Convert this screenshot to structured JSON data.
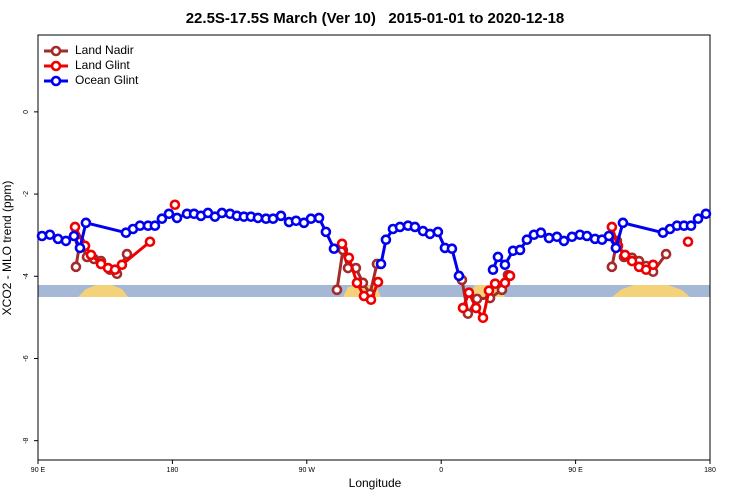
{
  "chart_data": {
    "type": "line",
    "title": "22.5S-17.5S March (Ver 10)   2015-01-01 to 2020-12-18",
    "xlabel": "Longitude",
    "ylabel": "XCO2 - MLO trend (ppm)",
    "xlim": [
      90,
      540
    ],
    "ylim": [
      -8.47,
      1.87
    ],
    "xticks": [
      {
        "value": 90,
        "label": "90 E"
      },
      180,
      {
        "value": 270,
        "label": "90 W"
      },
      0,
      {
        "value": 450,
        "label": "90 E"
      },
      {
        "value": 540,
        "label": "180"
      }
    ],
    "yticks": [
      0,
      -2,
      -4,
      -6,
      -8
    ],
    "legend": "top-left",
    "series": [
      {
        "name": "Land Nadir",
        "color": "#a52a2a",
        "x": [
          115.4,
          118.1,
          122.8,
          127.5,
          132.2,
          138.2,
          142.9,
          149.6,
          null,
          290.2,
          294.2,
          297.6,
          302.9,
          307.6,
          312.3,
          317.0,
          null,
          373.9,
          377.9,
          384.0,
          392.7,
          400.7,
          404.7,
          null,
          474.3,
          477.7,
          482.4,
          487.8,
          492.5,
          497.2,
          501.9,
          510.6
        ],
        "values": [
          -3.77,
          -3.16,
          -3.53,
          -3.58,
          -3.63,
          -3.84,
          -3.94,
          -3.46,
          null,
          -4.33,
          -3.36,
          -3.8,
          -3.8,
          -4.16,
          -4.43,
          -3.7,
          null,
          -4.09,
          -4.91,
          -4.55,
          -4.53,
          -4.33,
          -3.97,
          null,
          -3.77,
          -3.14,
          -3.53,
          -3.55,
          -3.63,
          -3.75,
          -3.89,
          -3.46
        ]
      },
      {
        "name": "Land Glint",
        "color": "#ee0000",
        "x": [
          114.8,
          121.5,
          125.5,
          132.2,
          136.9,
          141.6,
          146.2,
          165.0,
          null,
          181.7,
          null,
          293.6,
          298.2,
          303.6,
          308.3,
          313.0,
          317.7,
          null,
          374.6,
          378.6,
          383.3,
          388.0,
          392.0,
          396.1,
          402.7,
          406.1,
          null,
          474.3,
          478.4,
          483.1,
          487.8,
          492.5,
          497.2,
          501.9,
          null,
          525.3
        ],
        "values": [
          -2.8,
          -3.26,
          -3.48,
          -3.7,
          -3.8,
          -3.84,
          -3.72,
          -3.16,
          null,
          -2.26,
          null,
          -3.21,
          -3.55,
          -4.16,
          -4.48,
          -4.57,
          -4.14,
          null,
          -4.77,
          -4.4,
          -4.77,
          -5.01,
          -4.35,
          -4.18,
          -4.16,
          -3.99,
          null,
          -2.8,
          -3.26,
          -3.48,
          -3.63,
          -3.77,
          -3.84,
          -3.72,
          null,
          -3.16
        ]
      },
      {
        "name": "Ocean Glint",
        "color": "#0000ee",
        "x": [
          92.7,
          98.0,
          103.4,
          108.7,
          114.1,
          118.1,
          122.1,
          148.9,
          153.6,
          158.3,
          163.7,
          168.3,
          173.0,
          177.7,
          183.1,
          189.8,
          194.5,
          199.1,
          203.8,
          208.5,
          213.2,
          218.6,
          223.2,
          227.9,
          232.6,
          237.3,
          242.7,
          247.4,
          252.7,
          258.1,
          262.8,
          268.1,
          272.8,
          278.2,
          282.8,
          288.2,
          null,
          319.7,
          323.0,
          327.7,
          332.4,
          337.8,
          342.4,
          347.8,
          352.5,
          357.8,
          362.5,
          367.2,
          371.9,
          null,
          394.7,
          398.0,
          402.7,
          408.1,
          412.8,
          417.4,
          422.1,
          426.8,
          432.2,
          437.5,
          442.2,
          447.6,
          452.9,
          457.6,
          463.0,
          467.7,
          472.3,
          477.0,
          481.7,
          508.5,
          513.2,
          517.9,
          522.6,
          527.3,
          532.0,
          537.3
        ],
        "values": [
          -3.02,
          -2.99,
          -3.09,
          -3.14,
          -3.02,
          -3.31,
          -2.7,
          -2.94,
          -2.85,
          -2.77,
          -2.77,
          -2.77,
          -2.6,
          -2.48,
          -2.58,
          -2.48,
          -2.48,
          -2.53,
          -2.46,
          -2.55,
          -2.46,
          -2.48,
          -2.53,
          -2.55,
          -2.55,
          -2.58,
          -2.6,
          -2.6,
          -2.53,
          -2.68,
          -2.65,
          -2.7,
          -2.6,
          -2.58,
          -2.92,
          -3.33,
          null,
          -3.7,
          -3.11,
          -2.85,
          -2.8,
          -2.77,
          -2.8,
          -2.9,
          -2.97,
          -2.92,
          -3.31,
          -3.33,
          -3.99,
          null,
          -3.84,
          -3.53,
          -3.72,
          -3.38,
          -3.36,
          -3.11,
          -2.99,
          -2.94,
          -3.07,
          -3.04,
          -3.14,
          -3.04,
          -2.99,
          -3.02,
          -3.09,
          -3.11,
          -3.02,
          -3.31,
          -2.7,
          -2.94,
          -2.85,
          -2.77,
          -2.77,
          -2.77,
          -2.6,
          -2.48
        ]
      }
    ]
  }
}
